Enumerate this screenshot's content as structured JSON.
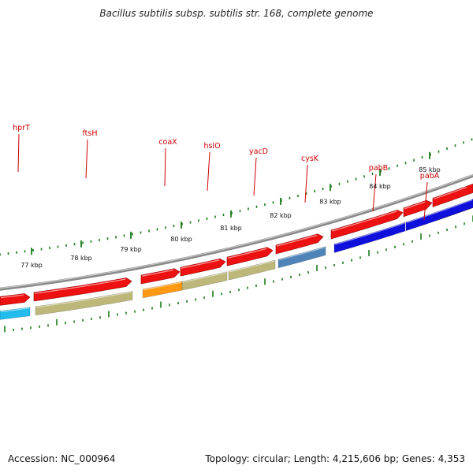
{
  "title": "Bacillus subtilis subsp. subtilis str. 168, complete genome",
  "footer": {
    "accession": "Accession: NC_000964",
    "summary": "Topology: circular; Length: 4,215,606 bp; Genes: 4,353"
  },
  "colors": {
    "label": "#cc0000",
    "backbone": "#888888",
    "tick": "#1a7a1a",
    "cds_red": "#ee1111"
  },
  "genes": [
    {
      "name": "hprT",
      "label_visible": true,
      "cog_color": "#22bbee"
    },
    {
      "name": "ftsH",
      "label_visible": true,
      "cog_color": "#bdb77a"
    },
    {
      "name": "coaX",
      "label_visible": true,
      "cog_color": "#ff9911"
    },
    {
      "name": "hslO",
      "label_visible": true,
      "cog_color": "#bdb77a"
    },
    {
      "name": "yacD",
      "label_visible": true,
      "cog_color": "#bdb77a"
    },
    {
      "name": "cysK",
      "label_visible": true,
      "cog_color": "#4f84b8"
    },
    {
      "name": "pabB",
      "label_visible": true,
      "cog_color": "#1010dd"
    },
    {
      "name": "pabA",
      "label_visible": true,
      "cog_color": "#1010dd"
    }
  ],
  "kbp_labels": [
    "77 kbp",
    "78 kbp",
    "79 kbp",
    "80 kbp",
    "81 kbp",
    "82 kbp",
    "83 kbp",
    "84 kbp",
    "85 kbp"
  ]
}
